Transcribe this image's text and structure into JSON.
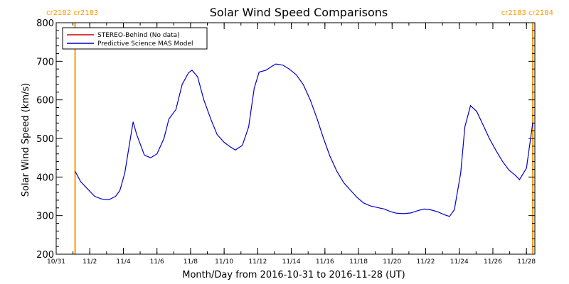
{
  "chart_data": {
    "type": "line",
    "title": "Solar Wind Speed Comparisons",
    "xlabel": "Month/Day from 2016-10-31 to 2016-11-28 (UT)",
    "ylabel": "Solar Wind Speed (km/s)",
    "ylim": [
      200,
      800
    ],
    "yticks": [
      200,
      300,
      400,
      500,
      600,
      700,
      800
    ],
    "xlim": [
      "2016-10-31",
      "2016-11-28T12"
    ],
    "xticks": [
      {
        "date": "2016-10-31",
        "label": "10/31"
      },
      {
        "date": "2016-11-02",
        "label": "11/2"
      },
      {
        "date": "2016-11-04",
        "label": "11/4"
      },
      {
        "date": "2016-11-06",
        "label": "11/6"
      },
      {
        "date": "2016-11-08",
        "label": "11/8"
      },
      {
        "date": "2016-11-10",
        "label": "11/10"
      },
      {
        "date": "2016-11-12",
        "label": "11/12"
      },
      {
        "date": "2016-11-14",
        "label": "11/14"
      },
      {
        "date": "2016-11-16",
        "label": "11/16"
      },
      {
        "date": "2016-11-18",
        "label": "11/18"
      },
      {
        "date": "2016-11-20",
        "label": "11/20"
      },
      {
        "date": "2016-11-22",
        "label": "11/22"
      },
      {
        "date": "2016-11-24",
        "label": "11/24"
      },
      {
        "date": "2016-11-26",
        "label": "11/26"
      },
      {
        "date": "2016-11-28",
        "label": "11/28"
      }
    ],
    "legend_position": "top-left",
    "legend": [
      {
        "label": "STEREO-Behind (No data)",
        "color": "#cc0000"
      },
      {
        "label": "Predictive Science MAS Model",
        "color": "#0000cc"
      }
    ],
    "carrington_markers": [
      {
        "date": "2016-11-01T03",
        "label": "cr2182 cr2183",
        "align": "left",
        "color": "#ff9900"
      },
      {
        "date": "2016-11-28T09",
        "label": "cr2183 cr2184",
        "align": "right",
        "color": "#ff9900"
      }
    ],
    "series": [
      {
        "name": "Predictive Science MAS Model",
        "color": "#0000cc",
        "points": [
          [
            "2016-11-01T03",
            415
          ],
          [
            "2016-11-01T11",
            388
          ],
          [
            "2016-11-01T22",
            367
          ],
          [
            "2016-11-02T07",
            350
          ],
          [
            "2016-11-02T17",
            343
          ],
          [
            "2016-11-03T03",
            341
          ],
          [
            "2016-11-03T13",
            350
          ],
          [
            "2016-11-03T19",
            365
          ],
          [
            "2016-11-04T02",
            410
          ],
          [
            "2016-11-04T10",
            500
          ],
          [
            "2016-11-04T14",
            543
          ],
          [
            "2016-11-04T19",
            510
          ],
          [
            "2016-11-05T06",
            457
          ],
          [
            "2016-11-05T15",
            450
          ],
          [
            "2016-11-06T00",
            460
          ],
          [
            "2016-11-06T10",
            500
          ],
          [
            "2016-11-06T17",
            550
          ],
          [
            "2016-11-07T03",
            575
          ],
          [
            "2016-11-07T12",
            640
          ],
          [
            "2016-11-07T21",
            670
          ],
          [
            "2016-11-08T02",
            677
          ],
          [
            "2016-11-08T10",
            660
          ],
          [
            "2016-11-08T19",
            600
          ],
          [
            "2016-11-09T05",
            550
          ],
          [
            "2016-11-09T14",
            510
          ],
          [
            "2016-11-10T00",
            490
          ],
          [
            "2016-11-10T09",
            478
          ],
          [
            "2016-11-10T16",
            470
          ],
          [
            "2016-11-11T02",
            482
          ],
          [
            "2016-11-11T11",
            530
          ],
          [
            "2016-11-11T19",
            630
          ],
          [
            "2016-11-12T02",
            672
          ],
          [
            "2016-11-12T12",
            677
          ],
          [
            "2016-11-12T21",
            688
          ],
          [
            "2016-11-13T02",
            693
          ],
          [
            "2016-11-13T12",
            690
          ],
          [
            "2016-11-13T21",
            680
          ],
          [
            "2016-11-14T07",
            665
          ],
          [
            "2016-11-14T17",
            640
          ],
          [
            "2016-11-15T03",
            600
          ],
          [
            "2016-11-15T13",
            550
          ],
          [
            "2016-11-15T22",
            500
          ],
          [
            "2016-11-16T07",
            455
          ],
          [
            "2016-11-16T17",
            415
          ],
          [
            "2016-11-17T03",
            385
          ],
          [
            "2016-11-17T13",
            365
          ],
          [
            "2016-11-17T22",
            347
          ],
          [
            "2016-11-18T07",
            333
          ],
          [
            "2016-11-18T17",
            325
          ],
          [
            "2016-11-19T03",
            321
          ],
          [
            "2016-11-19T13",
            317
          ],
          [
            "2016-11-19T22",
            310
          ],
          [
            "2016-11-20T07",
            306
          ],
          [
            "2016-11-20T17",
            305
          ],
          [
            "2016-11-21T03",
            307
          ],
          [
            "2016-11-21T13",
            313
          ],
          [
            "2016-11-21T22",
            317
          ],
          [
            "2016-11-22T07",
            315
          ],
          [
            "2016-11-22T17",
            310
          ],
          [
            "2016-11-23T03",
            302
          ],
          [
            "2016-11-23T10",
            298
          ],
          [
            "2016-11-23T17",
            315
          ],
          [
            "2016-11-24T02",
            410
          ],
          [
            "2016-11-24T08",
            530
          ],
          [
            "2016-11-24T16",
            585
          ],
          [
            "2016-11-25T01",
            570
          ],
          [
            "2016-11-25T10",
            535
          ],
          [
            "2016-11-25T19",
            500
          ],
          [
            "2016-11-26T05",
            467
          ],
          [
            "2016-11-26T14",
            440
          ],
          [
            "2016-11-26T23",
            418
          ],
          [
            "2016-11-27T09",
            403
          ],
          [
            "2016-11-27T14",
            393
          ],
          [
            "2016-11-28T00",
            423
          ],
          [
            "2016-11-28T09",
            540
          ]
        ]
      }
    ]
  }
}
